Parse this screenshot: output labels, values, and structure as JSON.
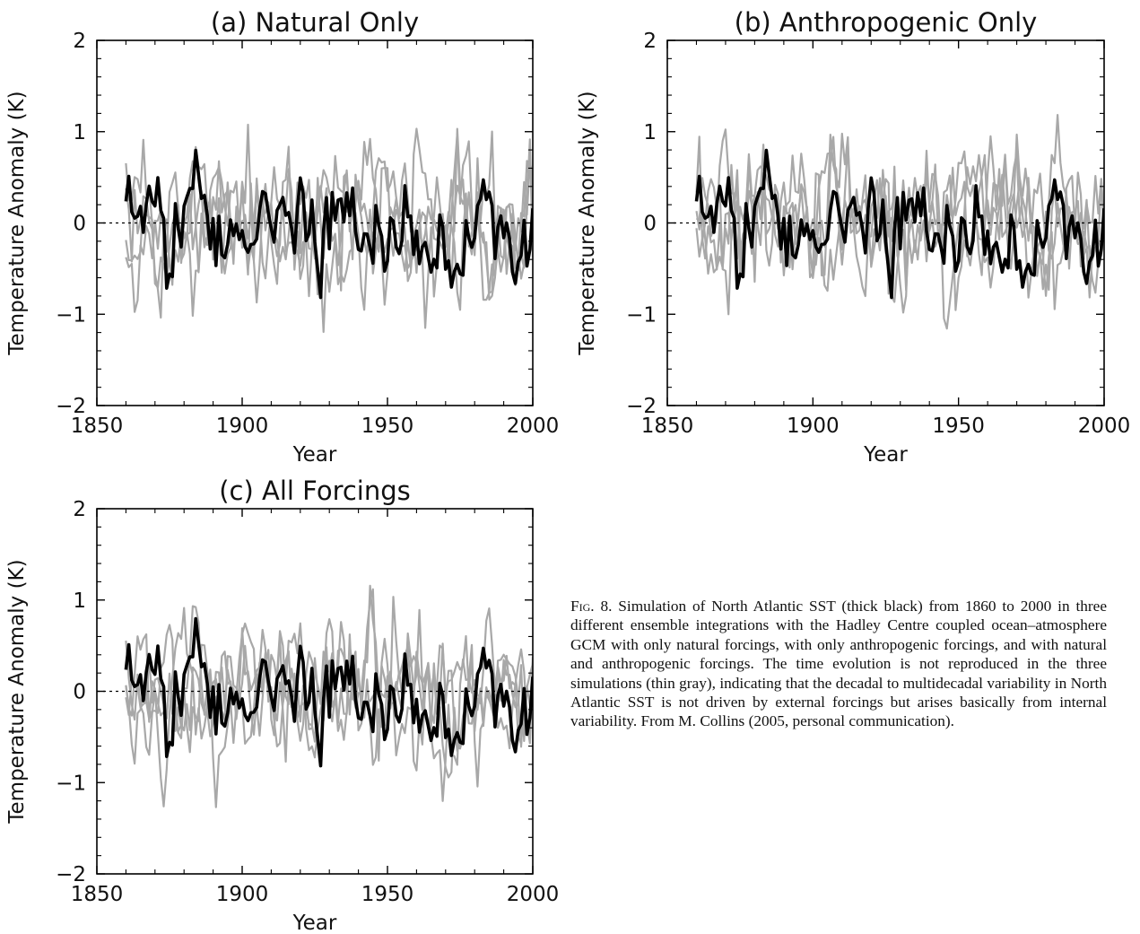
{
  "chart_data": [
    {
      "type": "line",
      "title": "(a) Natural Only",
      "xlabel": "Year",
      "ylabel": "Temperature Anomaly (K)",
      "xlim": [
        1850,
        2000
      ],
      "ylim": [
        -2,
        2
      ],
      "xticks": [
        1850,
        1900,
        1950,
        2000
      ],
      "yticks": [
        -2,
        -1,
        0,
        1,
        2
      ],
      "ytick_labels": [
        "−2",
        "−1",
        "0",
        "1",
        "2"
      ],
      "reference_line_y": 0,
      "observed_seed": 777,
      "ensemble_seeds": [
        11,
        23,
        37,
        41
      ],
      "observed_color": "#000000",
      "ensemble_color": "#a8a8a8"
    },
    {
      "type": "line",
      "title": "(b) Anthropogenic Only",
      "xlabel": "Year",
      "ylabel": "Temperature Anomaly (K)",
      "xlim": [
        1850,
        2000
      ],
      "ylim": [
        -2,
        2
      ],
      "xticks": [
        1850,
        1900,
        1950,
        2000
      ],
      "yticks": [
        -2,
        -1,
        0,
        1,
        2
      ],
      "ytick_labels": [
        "−2",
        "−1",
        "0",
        "1",
        "2"
      ],
      "reference_line_y": 0,
      "observed_seed": 777,
      "ensemble_seeds": [
        53,
        67,
        71,
        89
      ],
      "observed_color": "#000000",
      "ensemble_color": "#a8a8a8"
    },
    {
      "type": "line",
      "title": "(c) All Forcings",
      "xlabel": "Year",
      "ylabel": "Temperature Anomaly (K)",
      "xlim": [
        1850,
        2000
      ],
      "ylim": [
        -2,
        2
      ],
      "xticks": [
        1850,
        1900,
        1950,
        2000
      ],
      "yticks": [
        -2,
        -1,
        0,
        1,
        2
      ],
      "ytick_labels": [
        "−2",
        "−1",
        "0",
        "1",
        "2"
      ],
      "reference_line_y": 0,
      "observed_seed": 777,
      "ensemble_seeds": [
        97,
        101,
        113,
        127
      ],
      "observed_color": "#000000",
      "ensemble_color": "#a8a8a8"
    }
  ],
  "caption": {
    "label": "Fig. 8.",
    "text": "Simulation of North Atlantic SST (thick black) from 1860 to 2000 in three different ensemble integrations with the Hadley Centre coupled ocean–atmosphere GCM with only natural forcings, with only anthropogenic forcings, and with natural and anthropogenic forcings. The time evolution is not reproduced in the three simulations (thin gray), indicating that the decadal to multidecadal variability in North Atlantic SST is not driven by external forcings but arises basically from internal variability. From M. Collins (2005, personal communication)."
  }
}
